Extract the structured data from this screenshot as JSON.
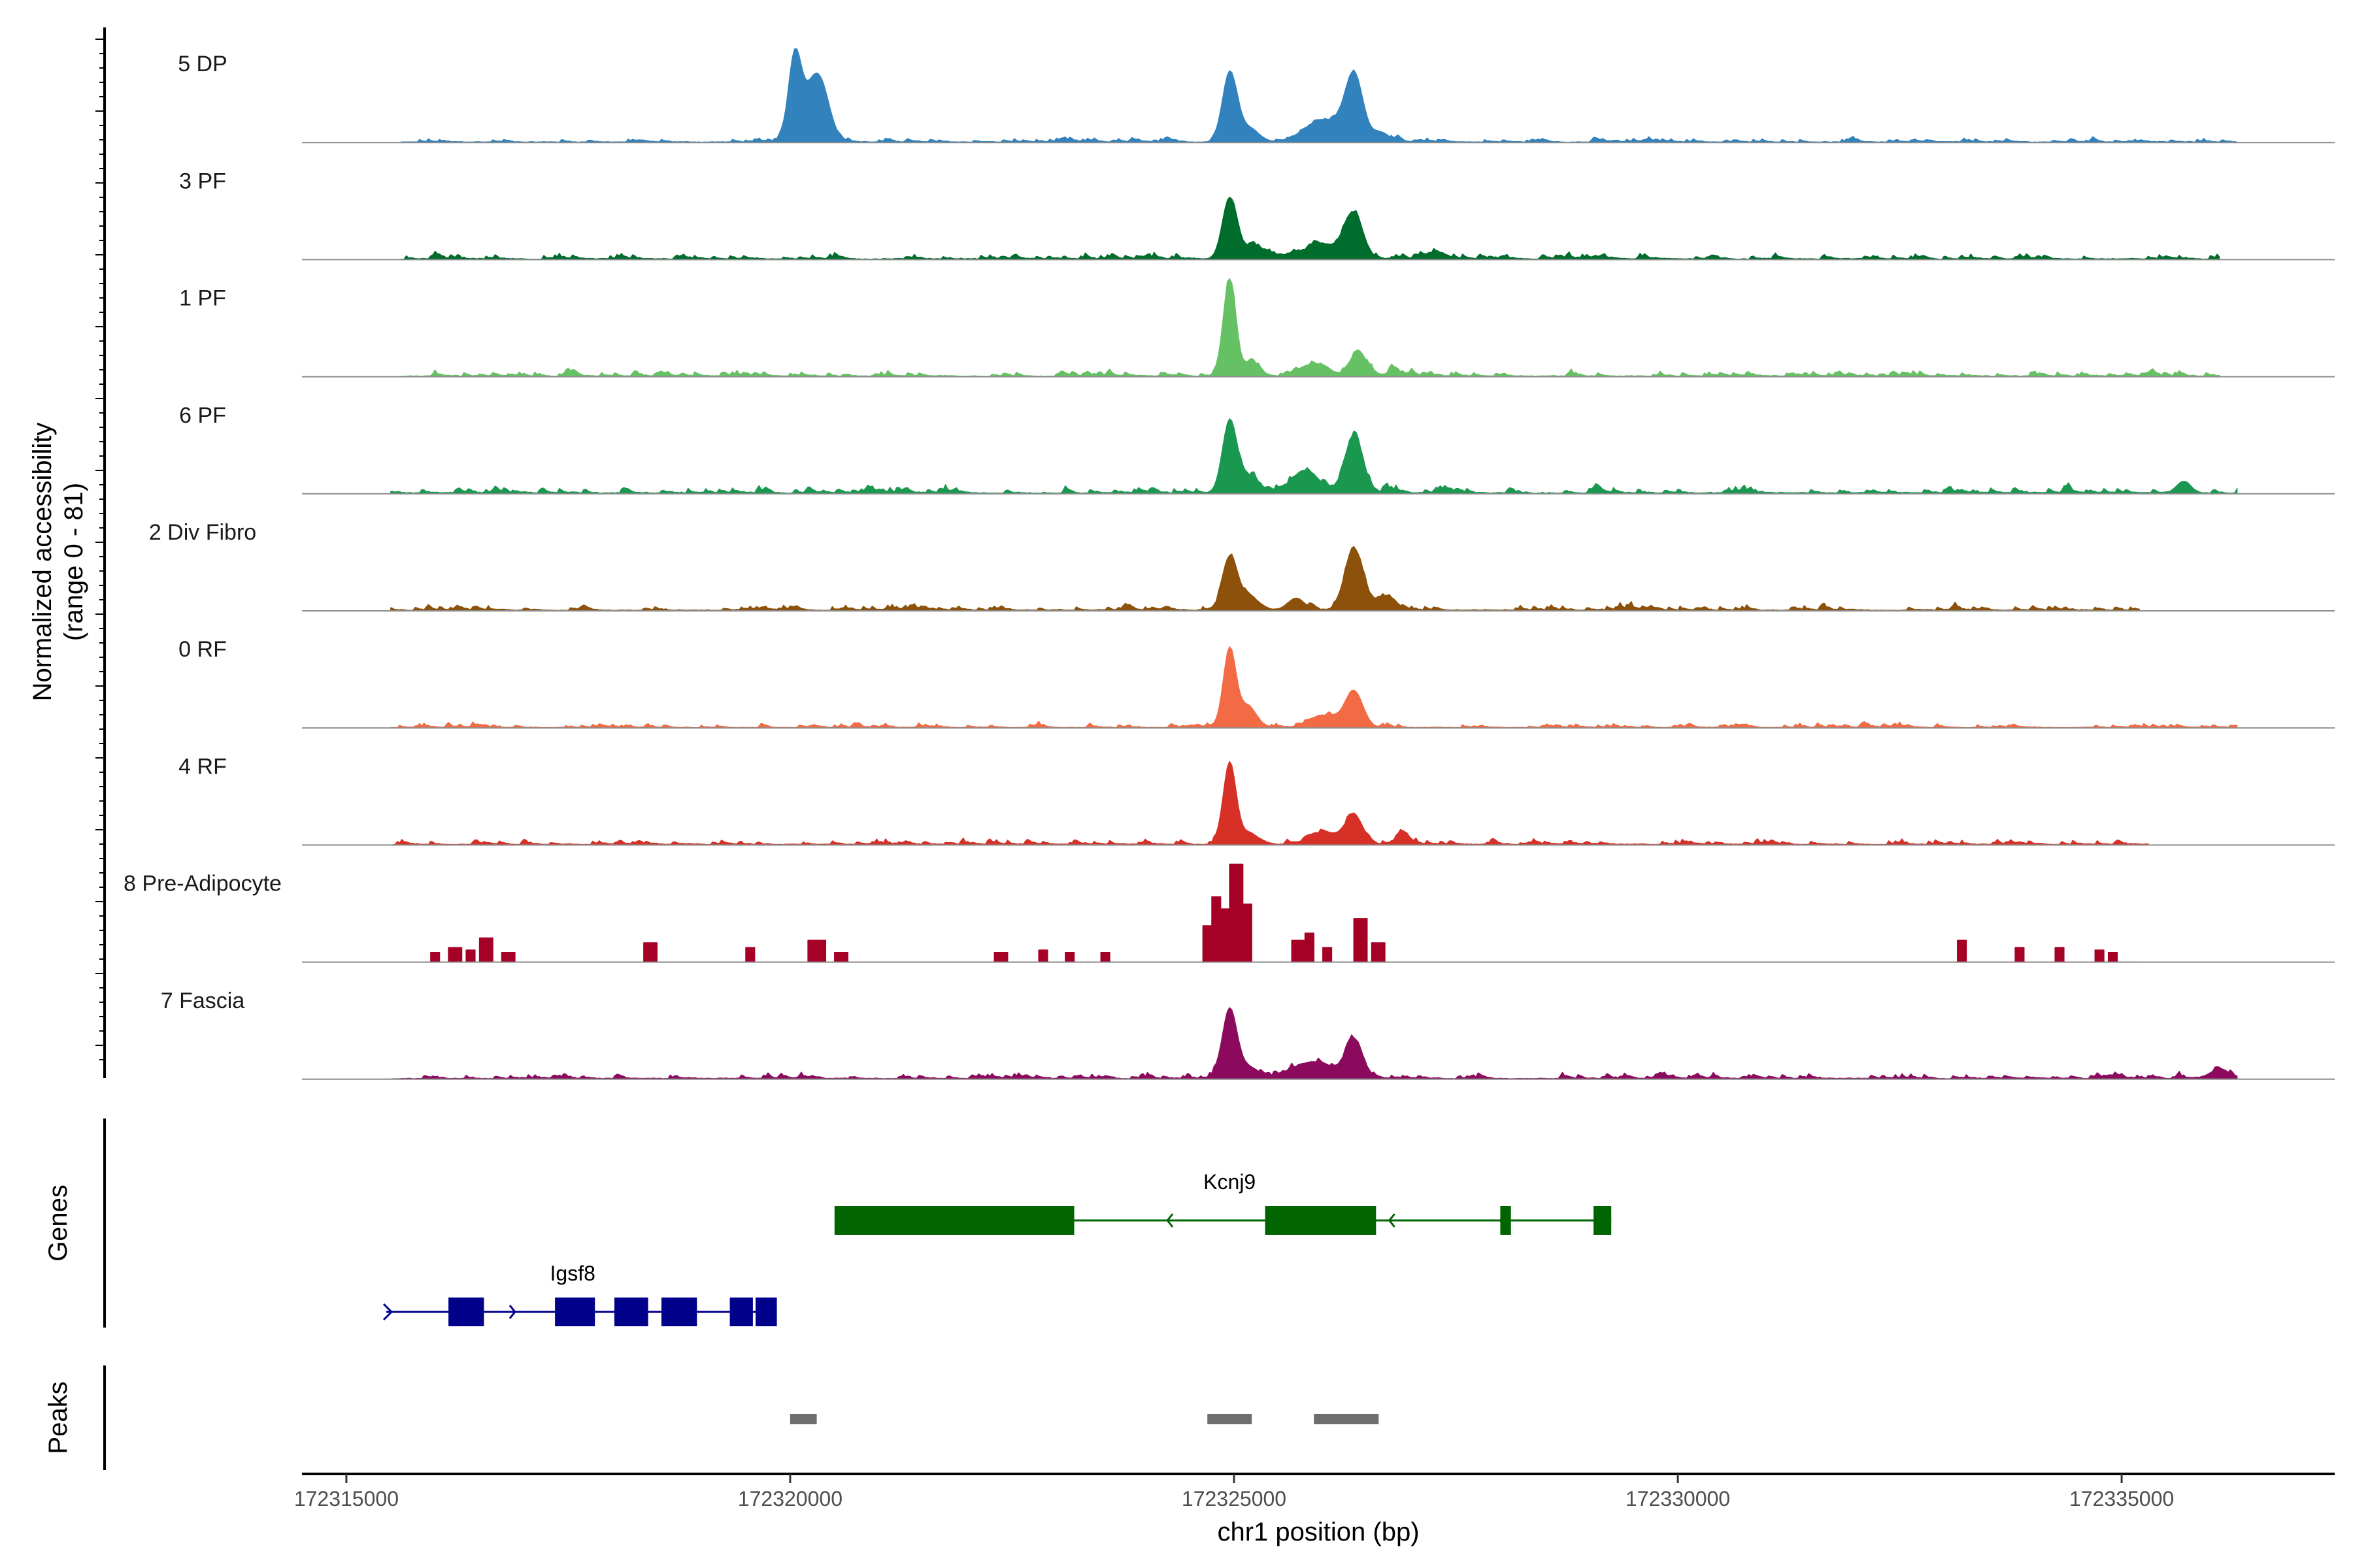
{
  "chart_data": {
    "type": "area",
    "region": {
      "chrom": "chr1",
      "start": 172314500,
      "end": 172337400
    },
    "xlabel": "chr1 position (bp)",
    "ylabel_line1": "Normalized accessibility",
    "ylabel_line2": "(range 0 - 81)",
    "ylim": [
      0,
      81
    ],
    "x_ticks": [
      {
        "value": 172315000,
        "label": "172315000"
      },
      {
        "value": 172320000,
        "label": "172320000"
      },
      {
        "value": 172325000,
        "label": "172325000"
      },
      {
        "value": 172330000,
        "label": "172330000"
      },
      {
        "value": 172335000,
        "label": "172335000"
      }
    ],
    "tracks": [
      {
        "name": "5 DP",
        "color": "#3182bd",
        "noise": 3,
        "range": [
          172315600,
          172336300
        ],
        "peaks": [
          [
            172320050,
            62,
            70
          ],
          [
            172320250,
            40,
            140
          ],
          [
            172320350,
            22,
            100
          ],
          [
            172324950,
            56,
            80
          ],
          [
            172325150,
            12,
            120
          ],
          [
            172326000,
            18,
            200
          ],
          [
            172326350,
            54,
            100
          ],
          [
            172326650,
            8,
            100
          ]
        ]
      },
      {
        "name": "3 PF",
        "color": "#006d2c",
        "noise": 4,
        "range": [
          172315600,
          172336100
        ],
        "peaks": [
          [
            172324950,
            50,
            80
          ],
          [
            172325200,
            10,
            120
          ],
          [
            172326000,
            12,
            200
          ],
          [
            172326350,
            36,
            100
          ],
          [
            172327300,
            5,
            100
          ]
        ]
      },
      {
        "name": "1 PF",
        "color": "#66c164",
        "noise": 4,
        "range": [
          172315600,
          172336100
        ],
        "peaks": [
          [
            172324950,
            80,
            70
          ],
          [
            172325200,
            12,
            80
          ],
          [
            172325900,
            10,
            150
          ],
          [
            172326400,
            20,
            90
          ],
          [
            172326800,
            6,
            60
          ]
        ]
      },
      {
        "name": "6 PF",
        "color": "#1a9850",
        "noise": 5,
        "range": [
          172315500,
          172336300
        ],
        "peaks": [
          [
            172324950,
            58,
            80
          ],
          [
            172325150,
            12,
            120
          ],
          [
            172325800,
            18,
            150
          ],
          [
            172326350,
            46,
            100
          ],
          [
            172335700,
            10,
            80
          ]
        ]
      },
      {
        "name": "2 Div Fibro",
        "color": "#8c510a",
        "noise": 4,
        "range": [
          172315500,
          172335200
        ],
        "peaks": [
          [
            172324950,
            42,
            80
          ],
          [
            172325150,
            12,
            120
          ],
          [
            172325700,
            10,
            90
          ],
          [
            172326350,
            50,
            100
          ],
          [
            172326700,
            10,
            120
          ]
        ]
      },
      {
        "name": "0 RF",
        "color": "#f26b45",
        "noise": 3,
        "range": [
          172315500,
          172336300
        ],
        "peaks": [
          [
            172324950,
            64,
            70
          ],
          [
            172325150,
            18,
            100
          ],
          [
            172326000,
            10,
            150
          ],
          [
            172326350,
            30,
            100
          ]
        ]
      },
      {
        "name": "4 RF",
        "color": "#d73027",
        "noise": 4,
        "range": [
          172315500,
          172335300
        ],
        "peaks": [
          [
            172324950,
            66,
            70
          ],
          [
            172325150,
            10,
            120
          ],
          [
            172326000,
            10,
            150
          ],
          [
            172326350,
            24,
            100
          ],
          [
            172326900,
            8,
            80
          ]
        ]
      },
      {
        "name": "8 Pre-Adipocyte",
        "color": "#a50026",
        "noise": 0,
        "range": [
          172315900,
          172335200
        ],
        "blocks": [
          [
            172315950,
            172316050,
            8
          ],
          [
            172316150,
            172316300,
            12
          ],
          [
            172316350,
            172316450,
            10
          ],
          [
            172316500,
            172316650,
            20
          ],
          [
            172316750,
            172316900,
            8
          ],
          [
            172318350,
            172318500,
            16
          ],
          [
            172319500,
            172319600,
            12
          ],
          [
            172320200,
            172320400,
            18
          ],
          [
            172320500,
            172320650,
            8
          ],
          [
            172322300,
            172322450,
            8
          ],
          [
            172322800,
            172322900,
            10
          ],
          [
            172323100,
            172323200,
            8
          ],
          [
            172323500,
            172323600,
            8
          ],
          [
            172324650,
            172324750,
            30
          ],
          [
            172324750,
            172324850,
            54
          ],
          [
            172324850,
            172324950,
            44
          ],
          [
            172324950,
            172325100,
            81
          ],
          [
            172325100,
            172325200,
            48
          ],
          [
            172325650,
            172325800,
            18
          ],
          [
            172325800,
            172325900,
            24
          ],
          [
            172326000,
            172326100,
            12
          ],
          [
            172326350,
            172326500,
            36
          ],
          [
            172326550,
            172326700,
            16
          ],
          [
            172333150,
            172333250,
            18
          ],
          [
            172333800,
            172333900,
            12
          ],
          [
            172334250,
            172334350,
            12
          ],
          [
            172334700,
            172334800,
            10
          ],
          [
            172334850,
            172334950,
            8
          ]
        ]
      },
      {
        "name": "7 Fascia",
        "color": "#8c0a5e",
        "noise": 4,
        "range": [
          172315500,
          172336300
        ],
        "peaks": [
          [
            172324950,
            56,
            80
          ],
          [
            172325150,
            10,
            120
          ],
          [
            172325900,
            14,
            200
          ],
          [
            172326350,
            30,
            100
          ],
          [
            172336100,
            8,
            100
          ]
        ]
      }
    ],
    "genes_track_label": "Genes",
    "peaks_track_label": "Peaks",
    "genes": [
      {
        "name": "Kcnj9",
        "strand": "-",
        "color": "#006400",
        "row": 1,
        "start": 172320500,
        "end": 172329250,
        "label_pos": 172324950,
        "exons": [
          [
            172320500,
            172323200
          ],
          [
            172325350,
            172326600
          ],
          [
            172328000,
            172328120
          ],
          [
            172329050,
            172329250
          ]
        ]
      },
      {
        "name": "Igsf8",
        "strand": "+",
        "color": "#00008b",
        "row": 2,
        "start": 172315450,
        "end": 172319800,
        "label_pos": 172317550,
        "exons": [
          [
            172316150,
            172316550
          ],
          [
            172317350,
            172317800
          ],
          [
            172318020,
            172318400
          ],
          [
            172318550,
            172318950
          ],
          [
            172319320,
            172319580
          ],
          [
            172319610,
            172319850
          ]
        ]
      }
    ],
    "peaks": [
      [
        172320000,
        172320300
      ],
      [
        172324700,
        172325200
      ],
      [
        172325900,
        172326630
      ]
    ]
  }
}
